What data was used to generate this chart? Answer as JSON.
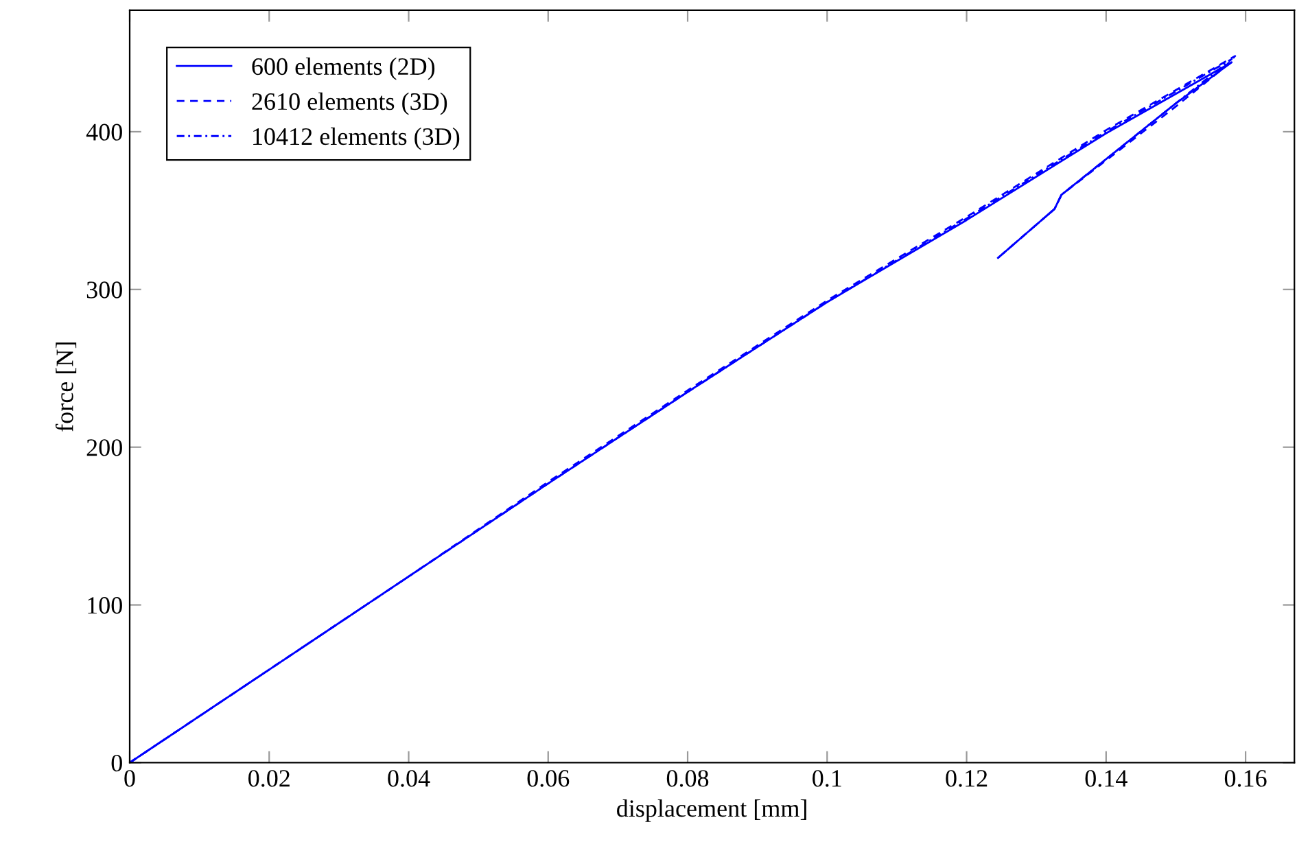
{
  "chart_data": {
    "type": "line",
    "xlabel": "displacement [mm]",
    "ylabel": "force [N]",
    "xlim": [
      0,
      0.167
    ],
    "ylim": [
      0,
      477
    ],
    "xticks": [
      0,
      0.02,
      0.04,
      0.06,
      0.08,
      0.1,
      0.12,
      0.14,
      0.16
    ],
    "yticks": [
      0,
      100,
      200,
      300,
      400
    ],
    "grid": false,
    "legend": "top left",
    "series": [
      {
        "name": "600 elements (2D)",
        "color": "#0000ff",
        "line_style": "solid",
        "x": [
          0,
          0.02,
          0.04,
          0.06,
          0.08,
          0.1,
          0.12,
          0.14,
          0.158,
          0.15,
          0.1336,
          0.1326,
          0.1245
        ],
        "values": [
          0,
          59,
          118,
          177,
          235,
          292,
          344,
          399,
          444,
          418,
          360,
          351,
          320
        ]
      },
      {
        "name": "2610 elements (3D)",
        "color": "#0000ff",
        "line_style": "dashed",
        "x": [
          0,
          0.02,
          0.04,
          0.06,
          0.08,
          0.1,
          0.12,
          0.14,
          0.1585,
          0.157,
          0.15,
          0.1336,
          0.1326,
          0.1245
        ],
        "values": [
          0,
          59,
          118,
          178,
          236,
          293,
          346,
          401,
          448,
          441,
          416,
          360,
          351,
          320
        ]
      },
      {
        "name": "10412 elements (3D)",
        "color": "#0000ff",
        "line_style": "dashdot",
        "x": [
          0,
          0.02,
          0.04,
          0.06,
          0.08,
          0.1,
          0.12,
          0.14,
          0.158,
          0.15,
          0.1336,
          0.1326,
          0.1245
        ],
        "values": [
          0,
          59,
          118,
          177,
          235,
          292,
          345,
          400,
          446,
          418,
          360,
          351,
          320
        ]
      }
    ]
  }
}
